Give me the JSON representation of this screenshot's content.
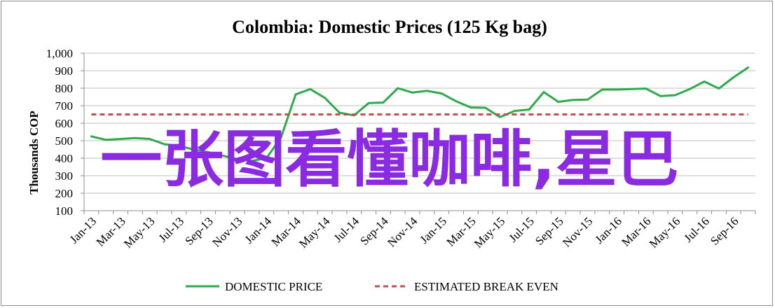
{
  "chart_data": {
    "type": "line",
    "title": "Colombia:  Domestic Prices (125 Kg bag)",
    "ylabel": "Thousands COP",
    "xlabel": "",
    "ylim": [
      100,
      1000
    ],
    "yticks": [
      "1,000",
      "900",
      "800",
      "700",
      "600",
      "500",
      "400",
      "300",
      "200",
      "100"
    ],
    "ytick_values": [
      1000,
      900,
      800,
      700,
      600,
      500,
      400,
      300,
      200,
      100
    ],
    "x_tick_labels": [
      "Jan-13",
      "Mar-13",
      "May-13",
      "Jul-13",
      "Sep-13",
      "Nov-13",
      "Jan-14",
      "Mar-14",
      "May-14",
      "Jul-14",
      "Sep-14",
      "Nov-14",
      "Jan-15",
      "Mar-15",
      "May-15",
      "Jul-15",
      "Sep-15",
      "Nov-15",
      "Jan-16",
      "Mar-16",
      "May-16",
      "Jul-16",
      "Sep-16"
    ],
    "months": [
      "Jan-13",
      "Feb-13",
      "Mar-13",
      "Apr-13",
      "May-13",
      "Jun-13",
      "Jul-13",
      "Aug-13",
      "Sep-13",
      "Oct-13",
      "Nov-13",
      "Dec-13",
      "Jan-14",
      "Feb-14",
      "Mar-14",
      "Apr-14",
      "May-14",
      "Jun-14",
      "Jul-14",
      "Aug-14",
      "Sep-14",
      "Oct-14",
      "Nov-14",
      "Dec-14",
      "Jan-15",
      "Feb-15",
      "Mar-15",
      "Apr-15",
      "May-15",
      "Jun-15",
      "Jul-15",
      "Aug-15",
      "Sep-15",
      "Oct-15",
      "Nov-15",
      "Dec-15",
      "Jan-16",
      "Feb-16",
      "Mar-16",
      "Apr-16",
      "May-16",
      "Jun-16",
      "Jul-16",
      "Aug-16",
      "Sep-16",
      "Oct-16"
    ],
    "grid": true,
    "legend_position": "bottom",
    "series": [
      {
        "name": "DOMESTIC PRICE",
        "color": "#2eaa4a",
        "style": "solid",
        "values": [
          525,
          505,
          510,
          515,
          510,
          480,
          470,
          450,
          435,
          415,
          395,
          385,
          400,
          520,
          765,
          795,
          745,
          660,
          645,
          715,
          718,
          800,
          775,
          785,
          770,
          725,
          690,
          688,
          635,
          670,
          678,
          778,
          722,
          733,
          735,
          792,
          792,
          795,
          798,
          755,
          760,
          795,
          838,
          798,
          862,
          918
        ]
      },
      {
        "name": "ESTIMATED BREAK EVEN",
        "color": "#c0504d",
        "style": "dashed",
        "values": [
          650,
          650,
          650,
          650,
          650,
          650,
          650,
          650,
          650,
          650,
          650,
          650,
          650,
          650,
          650,
          650,
          650,
          650,
          650,
          650,
          650,
          650,
          650,
          650,
          650,
          650,
          650,
          650,
          650,
          650,
          650,
          650,
          650,
          650,
          650,
          650,
          650,
          650,
          650,
          650,
          650,
          650,
          650,
          650,
          650,
          650
        ]
      }
    ]
  },
  "overlay_text": "一张图看懂咖啡,星巴"
}
